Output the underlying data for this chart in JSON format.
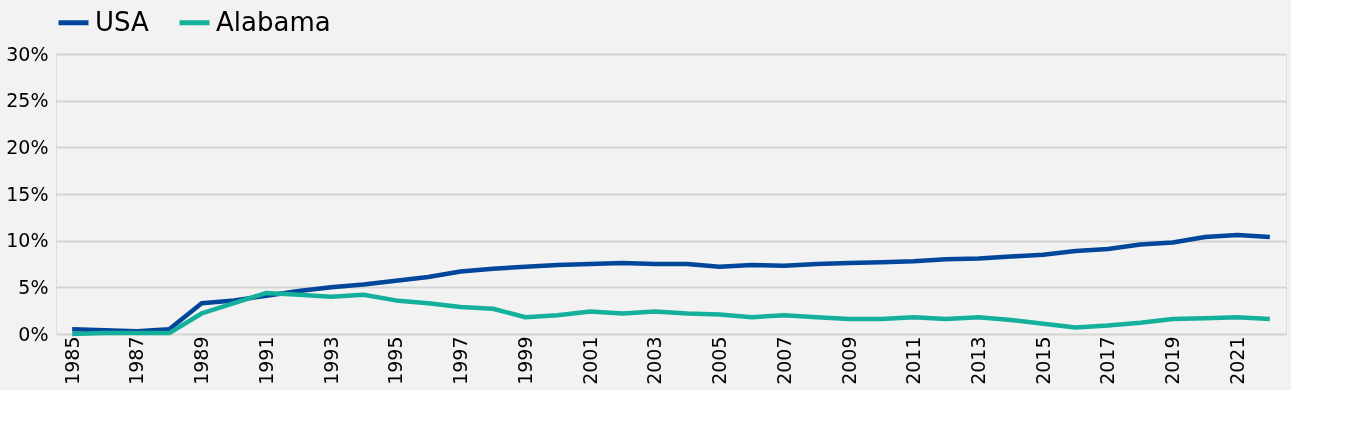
{
  "chart_data": {
    "type": "line",
    "categories": [
      "1985",
      null,
      "1987",
      null,
      "1989",
      null,
      "1991",
      null,
      "1993",
      null,
      "1995",
      null,
      "1997",
      null,
      "1999",
      null,
      "2001",
      null,
      "2003",
      null,
      "2005",
      null,
      "2007",
      null,
      "2009",
      null,
      "2011",
      null,
      "2013",
      null,
      "2015",
      null,
      "2017",
      null,
      "2019",
      null,
      "2021",
      null
    ],
    "series": [
      {
        "name": "USA",
        "color": "#00479b",
        "values": [
          0.5,
          0.4,
          0.3,
          0.5,
          3.3,
          3.6,
          4.1,
          4.6,
          5.0,
          5.3,
          5.7,
          6.1,
          6.7,
          7.0,
          7.2,
          7.4,
          7.5,
          7.6,
          7.5,
          7.5,
          7.2,
          7.4,
          7.3,
          7.5,
          7.6,
          7.7,
          7.8,
          8.0,
          8.1,
          8.3,
          8.5,
          8.9,
          9.1,
          9.6,
          9.8,
          10.4,
          10.6,
          10.4
        ]
      },
      {
        "name": "Alabama",
        "color": "#14b09b",
        "values": [
          0.0,
          0.1,
          0.1,
          0.1,
          2.2,
          3.3,
          4.4,
          4.2,
          4.0,
          4.2,
          3.6,
          3.3,
          2.9,
          2.7,
          1.8,
          2.0,
          2.4,
          2.2,
          2.4,
          2.2,
          2.1,
          1.8,
          2.0,
          1.8,
          1.6,
          1.6,
          1.8,
          1.6,
          1.8,
          1.5,
          1.1,
          0.7,
          0.9,
          1.2,
          1.6,
          1.7,
          1.8,
          1.6
        ]
      }
    ],
    "ylim": [
      0,
      30
    ],
    "yticks": [
      {
        "value": 0,
        "label": "0%"
      },
      {
        "value": 5,
        "label": "5%"
      },
      {
        "value": 10,
        "label": "10%"
      },
      {
        "value": 15,
        "label": "15%"
      },
      {
        "value": 20,
        "label": "20%"
      },
      {
        "value": 25,
        "label": "25%"
      },
      {
        "value": 30,
        "label": "30%"
      }
    ],
    "grid": "y",
    "legend": "top",
    "marker": "none",
    "line_style": "solid"
  }
}
